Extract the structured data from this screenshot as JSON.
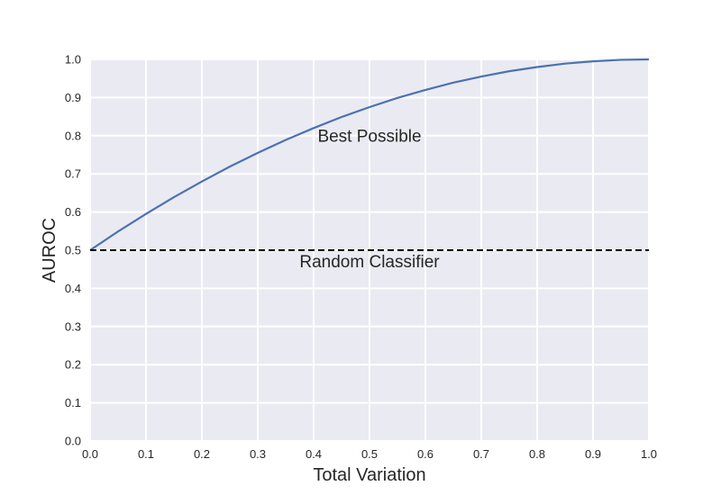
{
  "chart_data": {
    "type": "line",
    "title": "",
    "xlabel": "Total Variation",
    "ylabel": "AUROC",
    "xlim": [
      0.0,
      1.0
    ],
    "ylim": [
      0.0,
      1.0
    ],
    "grid": true,
    "x_ticks": [
      "0.0",
      "0.1",
      "0.2",
      "0.3",
      "0.4",
      "0.5",
      "0.6",
      "0.7",
      "0.8",
      "0.9",
      "1.0"
    ],
    "y_ticks": [
      "0.0",
      "0.1",
      "0.2",
      "0.3",
      "0.4",
      "0.5",
      "0.6",
      "0.7",
      "0.8",
      "0.9",
      "1.0"
    ],
    "series": [
      {
        "style": "solid",
        "color": "#4c72b0",
        "x": [
          0.0,
          0.05,
          0.1,
          0.15,
          0.2,
          0.25,
          0.3,
          0.35,
          0.4,
          0.45,
          0.5,
          0.55,
          0.6,
          0.65,
          0.7,
          0.75,
          0.8,
          0.85,
          0.9,
          0.95,
          1.0
        ],
        "y": [
          0.5,
          0.549,
          0.595,
          0.639,
          0.68,
          0.719,
          0.755,
          0.789,
          0.82,
          0.849,
          0.875,
          0.899,
          0.92,
          0.939,
          0.955,
          0.969,
          0.98,
          0.989,
          0.995,
          0.999,
          1.0
        ]
      },
      {
        "style": "dashed",
        "color": "#000000",
        "x": [
          0.0,
          1.0
        ],
        "y": [
          0.5,
          0.5
        ]
      }
    ],
    "annotations": [
      {
        "text": "Best Possible",
        "x": 0.5,
        "y": 0.8
      },
      {
        "text": "Random Classifier",
        "x": 0.5,
        "y": 0.47
      }
    ],
    "colors": {
      "plot_background": "#eaeaf2",
      "grid": "#ffffff"
    }
  }
}
